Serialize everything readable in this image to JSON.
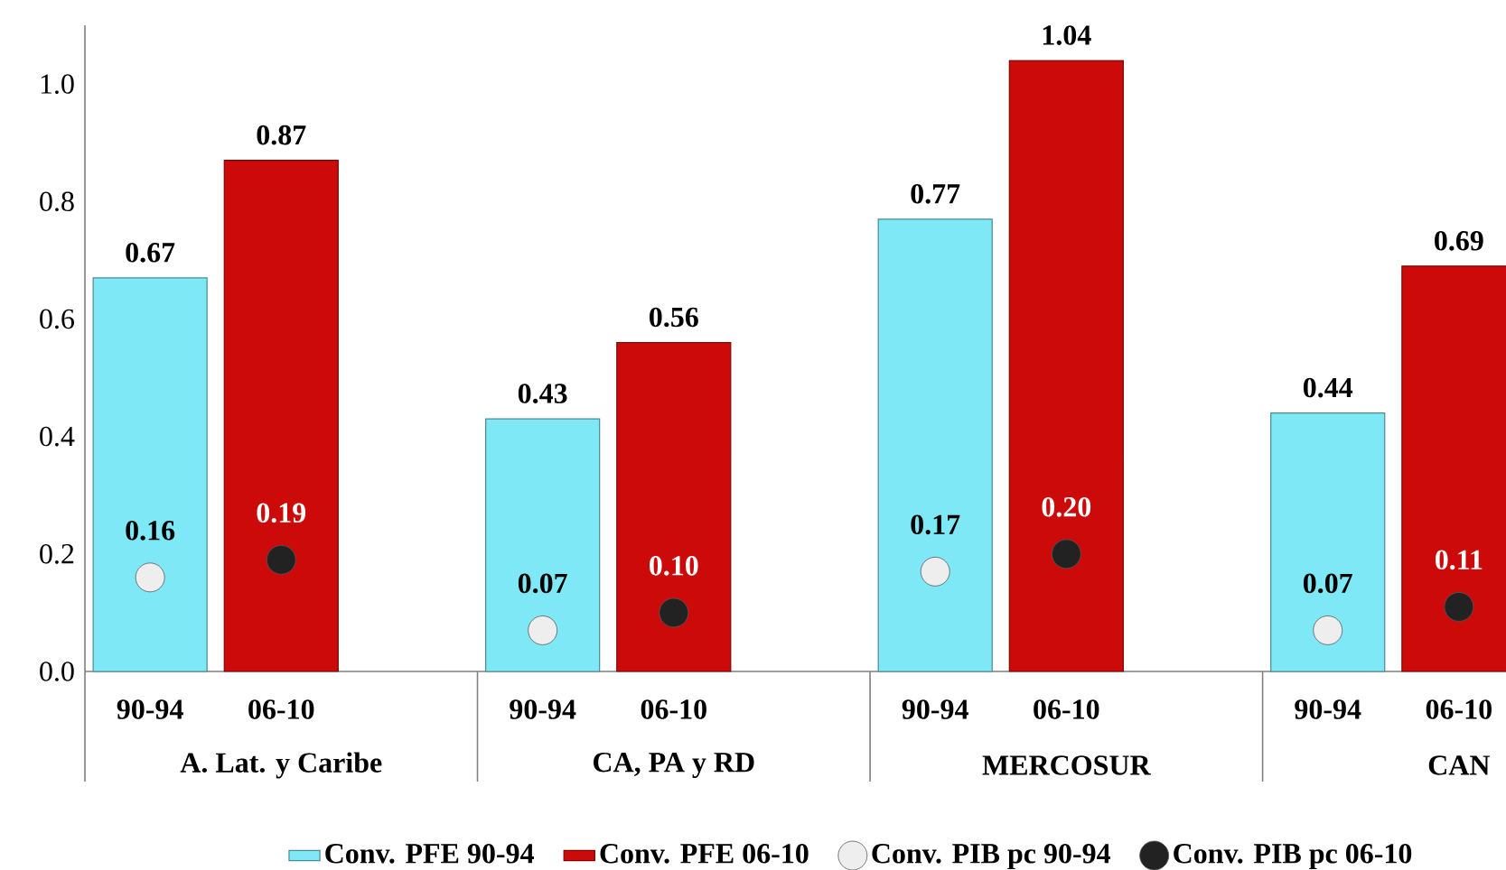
{
  "chart_data": {
    "type": "bar",
    "categories": [
      "A. Lat. y Caribe",
      "CA, PA y RD",
      "MERCOSUR",
      "CAN"
    ],
    "series": [
      {
        "name": "Conv. PFE 90-94",
        "color": "#7ee8f6",
        "values": [
          0.67,
          0.43,
          0.77,
          0.44
        ],
        "value_labels": [
          "0.67",
          "0.43",
          "0.77",
          "0.44"
        ]
      },
      {
        "name": "Conv. PFE 06-10",
        "color": "#cc0a0a",
        "values": [
          0.87,
          0.56,
          1.04,
          0.69
        ],
        "value_labels": [
          "0.87",
          "0.56",
          "1.04",
          "0.69"
        ]
      },
      {
        "name": "Conv. PIB pc 90-94",
        "type": "scatter",
        "color": "#eeeeee",
        "values": [
          0.16,
          0.07,
          0.17,
          0.07
        ],
        "value_labels": [
          "0.16",
          "0.07",
          "0.17",
          "0.07"
        ]
      },
      {
        "name": "Conv. PIB pc 06-10",
        "type": "scatter",
        "color": "#222222",
        "values": [
          0.19,
          0.1,
          0.2,
          0.11
        ],
        "value_labels": [
          "0.19",
          "0.10",
          "0.20",
          "0.11"
        ]
      }
    ],
    "annotations": [
      "90-94",
      "06-10",
      "90-94",
      "06-10",
      "90-94",
      "06-10",
      "90-94",
      "06-10"
    ],
    "ylim": [
      0,
      1.1
    ],
    "yticks": [
      {
        "value": 0,
        "label": "0.0"
      },
      {
        "value": 0.2,
        "label": "0.2"
      },
      {
        "value": 0.4,
        "label": "0.4"
      },
      {
        "value": 0.6,
        "label": "0.6"
      },
      {
        "value": 0.8,
        "label": "0.8"
      },
      {
        "value": 1.0,
        "label": "1.0"
      }
    ],
    "legend": "bottom",
    "marker": "circle",
    "grid": false
  }
}
